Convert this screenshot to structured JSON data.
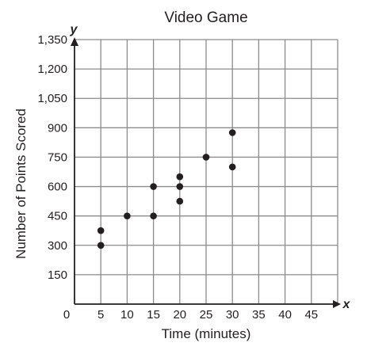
{
  "chart_data": {
    "type": "scatter",
    "title": "Video Game",
    "xlabel": "Time (minutes)",
    "ylabel": "Number of Points Scored",
    "x_axis_letter": "x",
    "y_axis_letter": "y",
    "xlim": [
      0,
      50
    ],
    "ylim": [
      0,
      1350
    ],
    "x_ticks": [
      0,
      5,
      10,
      15,
      20,
      25,
      30,
      35,
      40,
      45
    ],
    "x_tick_labels": [
      "0",
      "5",
      "10",
      "15",
      "20",
      "25",
      "30",
      "35",
      "40",
      "45"
    ],
    "y_ticks": [
      150,
      300,
      450,
      600,
      750,
      900,
      1050,
      1200,
      1350
    ],
    "y_tick_labels": [
      "150",
      "300",
      "450",
      "600",
      "750",
      "900",
      "1,050",
      "1,200",
      "1,350"
    ],
    "grid": true,
    "points": [
      {
        "x": 5,
        "y": 300
      },
      {
        "x": 5,
        "y": 375
      },
      {
        "x": 10,
        "y": 450
      },
      {
        "x": 15,
        "y": 450
      },
      {
        "x": 15,
        "y": 600
      },
      {
        "x": 20,
        "y": 525
      },
      {
        "x": 20,
        "y": 600
      },
      {
        "x": 20,
        "y": 650
      },
      {
        "x": 25,
        "y": 750
      },
      {
        "x": 30,
        "y": 700
      },
      {
        "x": 30,
        "y": 875
      }
    ]
  }
}
